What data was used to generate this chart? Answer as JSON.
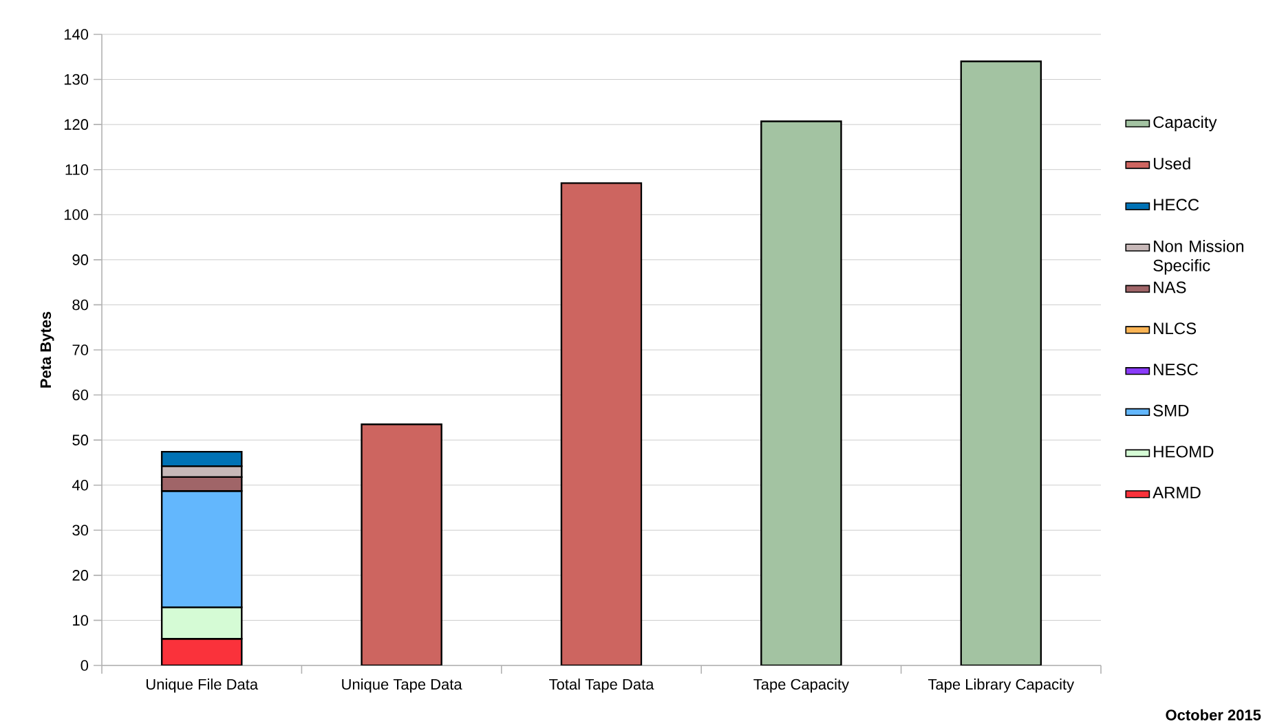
{
  "chart_data": {
    "type": "bar",
    "stacked": true,
    "ylabel": "Peta Bytes",
    "categories": [
      "Unique File Data",
      "Unique Tape Data",
      "Total Tape Data",
      "Tape Capacity",
      "Tape Library Capacity"
    ],
    "series": [
      {
        "name": "ARMD",
        "color": "#fa323b",
        "values": [
          5.9,
          null,
          null,
          null,
          null
        ]
      },
      {
        "name": "HEOMD",
        "color": "#d5fbd5",
        "values": [
          7,
          null,
          null,
          null,
          null
        ]
      },
      {
        "name": "SMD",
        "color": "#63b7fd",
        "values": [
          25.8,
          null,
          null,
          null,
          null
        ]
      },
      {
        "name": "NESC",
        "color": "#8a3cf9",
        "values": [
          null,
          null,
          null,
          null,
          null
        ]
      },
      {
        "name": "NLCS",
        "color": "#fbb455",
        "values": [
          null,
          null,
          null,
          null,
          null
        ]
      },
      {
        "name": "NAS",
        "color": "#a06568",
        "values": [
          3.1,
          null,
          null,
          null,
          null
        ]
      },
      {
        "name": "Non Mission Specific",
        "color": "#c7b8b8",
        "values": [
          2.4,
          null,
          null,
          null,
          null
        ]
      },
      {
        "name": "HECC",
        "color": "#0072b5",
        "values": [
          3.2,
          null,
          null,
          null,
          null
        ]
      },
      {
        "name": "Used",
        "color": "#cd6560",
        "values": [
          null,
          53.5,
          107,
          null,
          null
        ]
      },
      {
        "name": "Capacity",
        "color": "#a3c3a2",
        "values": [
          null,
          null,
          null,
          120.7,
          134
        ]
      }
    ],
    "ylim": [
      0,
      140
    ],
    "yticks": [
      0,
      10,
      20,
      30,
      40,
      50,
      60,
      70,
      80,
      90,
      100,
      110,
      120,
      130,
      140
    ],
    "grid": "y",
    "legend": "right",
    "annotations": [
      "October 2015"
    ]
  }
}
